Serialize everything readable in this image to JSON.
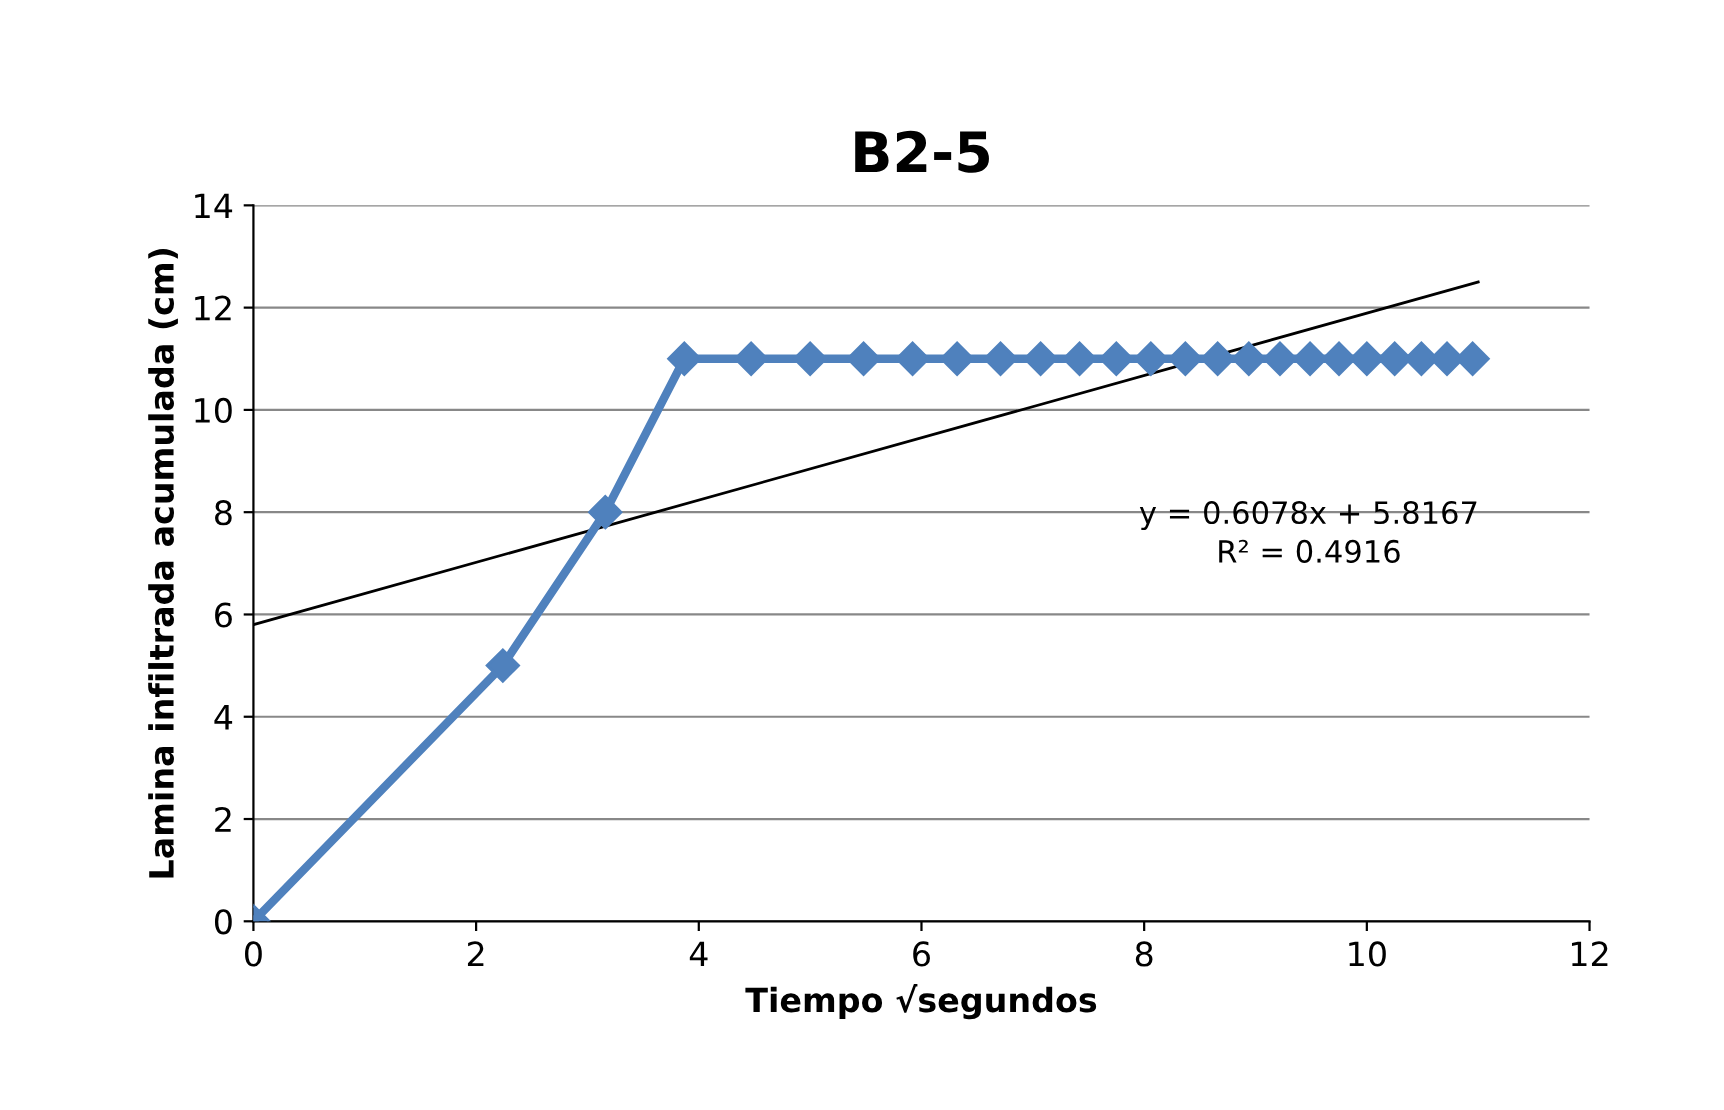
{
  "chart_data": {
    "type": "line",
    "title": "B2-5",
    "xlabel": "Tiempo √segundos",
    "ylabel": "Lamina infiltrada acumulada (cm)",
    "xlim": [
      0,
      12
    ],
    "xticks": [
      0,
      2,
      4,
      6,
      8,
      10,
      12
    ],
    "ylim": [
      0,
      14
    ],
    "yticks": [
      0,
      2,
      4,
      6,
      8,
      10,
      12,
      14
    ],
    "grid": "y",
    "legend": false,
    "series": [
      {
        "color": "#4f81bd",
        "marker": "diamond",
        "x": [
          0,
          2.24,
          3.16,
          3.87,
          4.47,
          5,
          5.48,
          5.92,
          6.32,
          6.71,
          7.07,
          7.42,
          7.75,
          8.06,
          8.37,
          8.66,
          8.94,
          9.22,
          9.49,
          9.75,
          10,
          10.25,
          10.49,
          10.72,
          10.95
        ],
        "values": [
          0,
          5,
          8,
          11,
          11,
          11,
          11,
          11,
          11,
          11,
          11,
          11,
          11,
          11,
          11,
          11,
          11,
          11,
          11,
          11,
          11,
          11,
          11,
          11,
          11
        ]
      },
      {
        "type": "line",
        "color": "#000000",
        "marker": "none",
        "x": [
          0,
          11
        ],
        "values": [
          5.8,
          12.5
        ]
      }
    ],
    "annotations": [
      "y = 0.6078x + 5.8167\nR² = 0.4916"
    ]
  }
}
